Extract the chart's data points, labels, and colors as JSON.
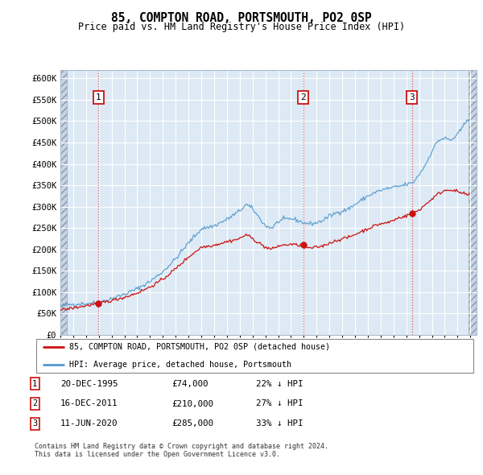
{
  "title": "85, COMPTON ROAD, PORTSMOUTH, PO2 0SP",
  "subtitle": "Price paid vs. HM Land Registry's House Price Index (HPI)",
  "ylim": [
    0,
    620000
  ],
  "yticks": [
    0,
    50000,
    100000,
    150000,
    200000,
    250000,
    300000,
    350000,
    400000,
    450000,
    500000,
    550000,
    600000
  ],
  "ytick_labels": [
    "£0",
    "£50K",
    "£100K",
    "£150K",
    "£200K",
    "£250K",
    "£300K",
    "£350K",
    "£400K",
    "£450K",
    "£500K",
    "£550K",
    "£600K"
  ],
  "hpi_color": "#5599cc",
  "price_color": "#cc1111",
  "background_color": "#ddeaf5",
  "hatch_bg_color": "#c5d5e5",
  "grid_color": "#ffffff",
  "legend_label_price": "85, COMPTON ROAD, PORTSMOUTH, PO2 0SP (detached house)",
  "legend_label_hpi": "HPI: Average price, detached house, Portsmouth",
  "sale_points": [
    {
      "date": 1995.97,
      "price": 74000,
      "label": "1"
    },
    {
      "date": 2011.97,
      "price": 210000,
      "label": "2"
    },
    {
      "date": 2020.44,
      "price": 285000,
      "label": "3"
    }
  ],
  "annotation_rows": [
    {
      "num": "1",
      "date": "20-DEC-1995",
      "price": "£74,000",
      "hpi": "22% ↓ HPI"
    },
    {
      "num": "2",
      "date": "16-DEC-2011",
      "price": "£210,000",
      "hpi": "27% ↓ HPI"
    },
    {
      "num": "3",
      "date": "11-JUN-2020",
      "price": "£285,000",
      "hpi": "33% ↓ HPI"
    }
  ],
  "footer": "Contains HM Land Registry data © Crown copyright and database right 2024.\nThis data is licensed under the Open Government Licence v3.0.",
  "xlim": [
    1993.0,
    2025.5
  ],
  "xstart_data": 1993.5,
  "xend_data": 2024.75
}
